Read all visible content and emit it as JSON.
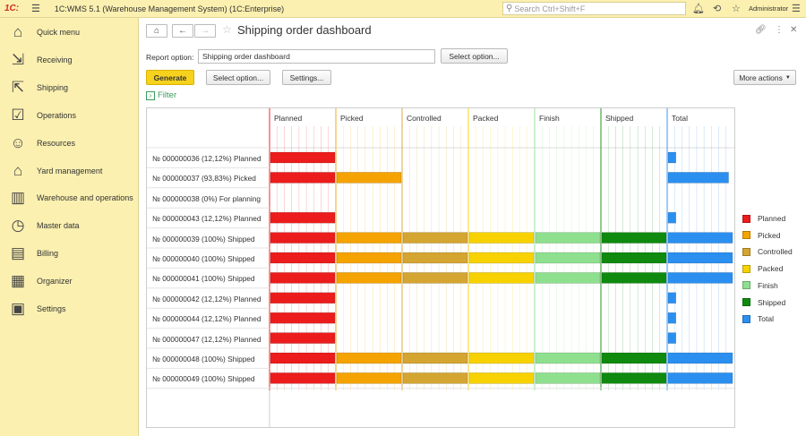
{
  "app": {
    "logo": "1C:",
    "title": "1C:WMS 5.1 (Warehouse Management System)  (1C:Enterprise)",
    "search_placeholder": "Search Ctrl+Shift+F",
    "user": "Administrator"
  },
  "sidebar": {
    "items": [
      {
        "label": "Quick menu",
        "icon": "home-icon"
      },
      {
        "label": "Receiving",
        "icon": "receiving-icon"
      },
      {
        "label": "Shipping",
        "icon": "shipping-icon"
      },
      {
        "label": "Operations",
        "icon": "operations-icon"
      },
      {
        "label": "Resources",
        "icon": "resources-icon"
      },
      {
        "label": "Yard management",
        "icon": "yard-icon"
      },
      {
        "label": "Warehouse and operations",
        "icon": "warehouse-icon"
      },
      {
        "label": "Master data",
        "icon": "master-data-icon"
      },
      {
        "label": "Billing",
        "icon": "billing-icon"
      },
      {
        "label": "Organizer",
        "icon": "organizer-icon"
      },
      {
        "label": "Settings",
        "icon": "settings-icon"
      }
    ]
  },
  "page": {
    "title": "Shipping order dashboard",
    "report_option_label": "Report option:",
    "report_option_value": "Shipping order dashboard",
    "select_option_btn": "Select option...",
    "generate_btn": "Generate",
    "select_option_btn2": "Select option...",
    "settings_btn": "Settings...",
    "more_actions_btn": "More actions",
    "filter_label": "Filter"
  },
  "chart_data": {
    "type": "table",
    "columns": [
      "Planned",
      "Picked",
      "Controlled",
      "Packed",
      "Finish",
      "Shipped",
      "Total"
    ],
    "column_colors": [
      "#ec1c1c",
      "#f5a300",
      "#d4a530",
      "#f8d200",
      "#8ee08e",
      "#0f8a0f",
      "#2b8ff0"
    ],
    "rows": [
      {
        "label": "№ 000000036 (12,12%) Planned",
        "stages": 1,
        "total": 0.1212
      },
      {
        "label": "№ 000000037 (93,83%) Picked",
        "stages": 2,
        "total": 0.9383
      },
      {
        "label": "№ 000000038 (0%) For planning",
        "stages": 0,
        "total": 0
      },
      {
        "label": "№ 000000043 (12,12%) Planned",
        "stages": 1,
        "total": 0.1212
      },
      {
        "label": "№ 000000039 (100%) Shipped",
        "stages": 6,
        "total": 1.0
      },
      {
        "label": "№ 000000040 (100%) Shipped",
        "stages": 6,
        "total": 1.0
      },
      {
        "label": "№ 000000041 (100%) Shipped",
        "stages": 6,
        "total": 1.0
      },
      {
        "label": "№ 000000042 (12,12%) Planned",
        "stages": 1,
        "total": 0.1212
      },
      {
        "label": "№ 000000044 (12,12%) Planned",
        "stages": 1,
        "total": 0.1212
      },
      {
        "label": "№ 000000047 (12,12%) Planned",
        "stages": 1,
        "total": 0.1212
      },
      {
        "label": "№ 000000048 (100%) Shipped",
        "stages": 6,
        "total": 1.0
      },
      {
        "label": "№ 000000049 (100%) Shipped",
        "stages": 6,
        "total": 1.0
      }
    ],
    "legend": [
      "Planned",
      "Picked",
      "Controlled",
      "Packed",
      "Finish",
      "Shipped",
      "Total"
    ],
    "legend_placement": "right"
  }
}
